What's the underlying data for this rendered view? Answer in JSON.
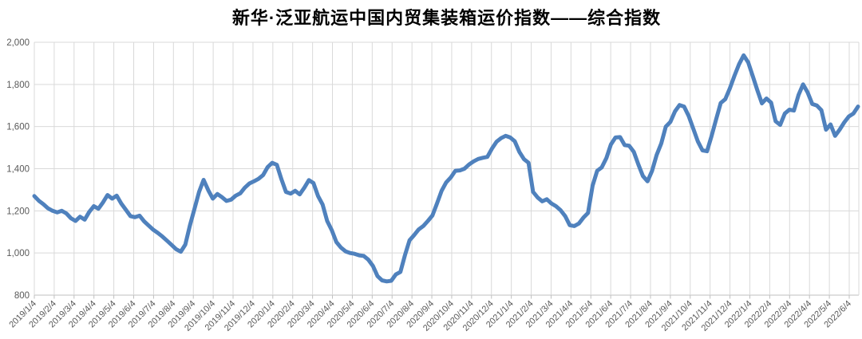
{
  "title": "新华·泛亚航运中国内贸集装箱运价指数——综合指数",
  "colors": {
    "line": "#4F81BD",
    "grid": "#D9D9D9",
    "axis": "#BFBFBF",
    "tick_text": "#595959",
    "title_text": "#000000",
    "background": "#FFFFFF"
  },
  "chart_data": {
    "type": "line",
    "title": "新华·泛亚航运中国内贸集装箱运价指数——综合指数",
    "legend": "none",
    "grid": true,
    "ylim": [
      800,
      2000
    ],
    "y_step": 200,
    "y_tick_labels": [
      "2,000",
      "1,800",
      "1,600",
      "1,400",
      "1,200",
      "1,000",
      "800"
    ],
    "x_labels": [
      "2019/1/4",
      "2019/2/4",
      "2019/3/4",
      "2019/4/4",
      "2019/5/4",
      "2019/6/4",
      "2019/7/4",
      "2019/8/4",
      "2019/9/4",
      "2019/10/4",
      "2019/11/4",
      "2019/12/4",
      "2020/1/4",
      "2020/2/4",
      "2020/3/4",
      "2020/4/4",
      "2020/5/4",
      "2020/6/4",
      "2020/7/4",
      "2020/8/4",
      "2020/9/4",
      "2020/10/4",
      "2020/11/4",
      "2020/12/4",
      "2021/1/4",
      "2021/2/4",
      "2021/3/4",
      "2021/4/4",
      "2021/5/4",
      "2021/6/4",
      "2021/7/4",
      "2021/8/4",
      "2021/9/4",
      "2021/10/4",
      "2021/11/4",
      "2021/12/4",
      "2022/1/4",
      "2022/2/4",
      "2022/3/4",
      "2022/4/4",
      "2022/5/4",
      "2022/6/4"
    ],
    "series": [
      {
        "name": "综合指数",
        "color": "#4F81BD",
        "frequency": "weekly",
        "values": [
          1270,
          1248,
          1231,
          1212,
          1200,
          1193,
          1200,
          1188,
          1165,
          1152,
          1172,
          1158,
          1195,
          1222,
          1210,
          1240,
          1275,
          1258,
          1272,
          1235,
          1205,
          1175,
          1170,
          1177,
          1150,
          1130,
          1110,
          1095,
          1078,
          1058,
          1038,
          1018,
          1006,
          1040,
          1130,
          1210,
          1290,
          1347,
          1298,
          1258,
          1280,
          1265,
          1247,
          1253,
          1272,
          1283,
          1310,
          1330,
          1340,
          1352,
          1370,
          1408,
          1428,
          1418,
          1350,
          1290,
          1282,
          1295,
          1278,
          1310,
          1346,
          1332,
          1270,
          1230,
          1152,
          1108,
          1052,
          1026,
          1008,
          1000,
          996,
          989,
          986,
          968,
          938,
          890,
          870,
          865,
          868,
          898,
          910,
          990,
          1060,
          1085,
          1112,
          1128,
          1152,
          1178,
          1235,
          1295,
          1335,
          1358,
          1390,
          1392,
          1400,
          1420,
          1435,
          1446,
          1452,
          1456,
          1495,
          1528,
          1545,
          1556,
          1548,
          1530,
          1480,
          1445,
          1428,
          1290,
          1263,
          1245,
          1255,
          1235,
          1222,
          1203,
          1175,
          1132,
          1128,
          1140,
          1168,
          1190,
          1320,
          1390,
          1406,
          1450,
          1515,
          1548,
          1550,
          1512,
          1509,
          1480,
          1420,
          1365,
          1340,
          1390,
          1465,
          1520,
          1600,
          1622,
          1672,
          1702,
          1695,
          1650,
          1590,
          1530,
          1487,
          1483,
          1555,
          1635,
          1712,
          1730,
          1782,
          1841,
          1895,
          1938,
          1905,
          1840,
          1772,
          1710,
          1733,
          1714,
          1625,
          1608,
          1662,
          1680,
          1676,
          1750,
          1800,
          1762,
          1707,
          1700,
          1678,
          1585,
          1610,
          1556,
          1586,
          1620,
          1648,
          1662,
          1695
        ]
      }
    ]
  }
}
